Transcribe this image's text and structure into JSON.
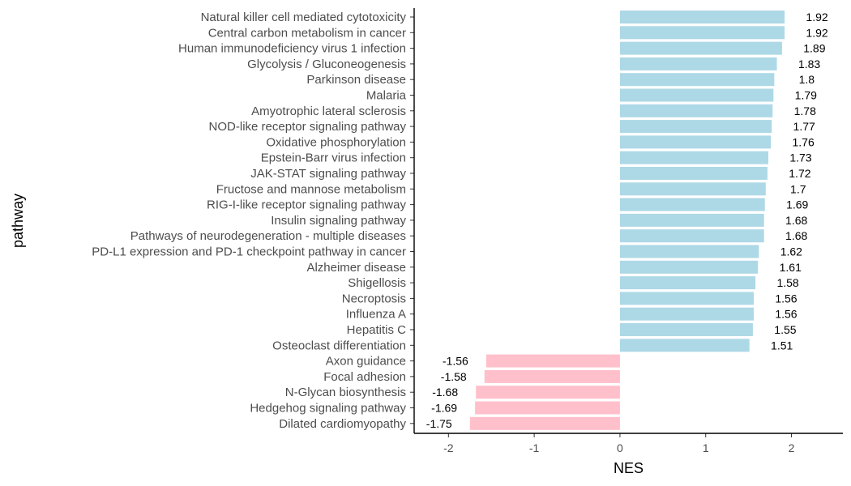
{
  "chart_data": {
    "type": "bar",
    "orientation": "horizontal",
    "xlabel": "NES",
    "ylabel": "pathway",
    "xlim": [
      -2.4,
      2.6
    ],
    "x_ticks": [
      -2,
      -1,
      0,
      1,
      2
    ],
    "colors": {
      "positive": "#ADD8E6",
      "negative": "#FFC0CB"
    },
    "grid": false,
    "categories": [
      "Natural killer cell mediated cytotoxicity",
      "Central carbon metabolism in cancer",
      "Human immunodeficiency virus 1 infection",
      "Glycolysis / Gluconeogenesis",
      "Parkinson disease",
      "Malaria",
      "Amyotrophic lateral sclerosis",
      "NOD-like receptor signaling pathway",
      "Oxidative phosphorylation",
      "Epstein-Barr virus infection",
      "JAK-STAT signaling pathway",
      "Fructose and mannose metabolism",
      "RIG-I-like receptor signaling pathway",
      "Insulin signaling pathway",
      "Pathways of neurodegeneration - multiple diseases",
      "PD-L1 expression and PD-1 checkpoint pathway in cancer",
      "Alzheimer disease",
      "Shigellosis",
      "Necroptosis",
      "Influenza A",
      "Hepatitis C",
      "Osteoclast differentiation",
      "Axon guidance",
      "Focal adhesion",
      "N-Glycan biosynthesis",
      "Hedgehog signaling pathway",
      "Dilated cardiomyopathy"
    ],
    "values": [
      1.92,
      1.92,
      1.89,
      1.83,
      1.8,
      1.79,
      1.78,
      1.77,
      1.76,
      1.73,
      1.72,
      1.7,
      1.69,
      1.68,
      1.68,
      1.62,
      1.61,
      1.58,
      1.56,
      1.56,
      1.55,
      1.51,
      -1.56,
      -1.58,
      -1.68,
      -1.69,
      -1.75
    ],
    "value_labels": [
      "1.92",
      "1.92",
      "1.89",
      "1.83",
      "1.8",
      "1.79",
      "1.78",
      "1.77",
      "1.76",
      "1.73",
      "1.72",
      "1.7",
      "1.69",
      "1.68",
      "1.68",
      "1.62",
      "1.61",
      "1.58",
      "1.56",
      "1.56",
      "1.55",
      "1.51",
      "-1.56",
      "-1.58",
      "-1.68",
      "-1.69",
      "-1.75"
    ]
  }
}
